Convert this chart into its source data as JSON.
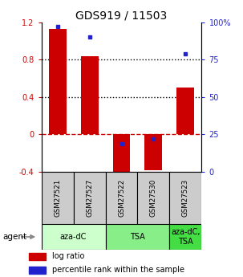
{
  "title": "GDS919 / 11503",
  "categories": [
    "GSM27521",
    "GSM27527",
    "GSM27522",
    "GSM27530",
    "GSM27523"
  ],
  "log_ratios": [
    1.13,
    0.84,
    -0.43,
    -0.38,
    0.5
  ],
  "percentile_ranks": [
    97,
    90,
    19,
    22,
    79
  ],
  "bar_color": "#cc0000",
  "dot_color": "#2222cc",
  "ylim_left": [
    -0.4,
    1.2
  ],
  "ylim_right": [
    0,
    100
  ],
  "yticks_left": [
    -0.4,
    0,
    0.4,
    0.8,
    1.2
  ],
  "yticks_right": [
    0,
    25,
    50,
    75,
    100
  ],
  "ytick_labels_left": [
    "-0.4",
    "0",
    "0.4",
    "0.8",
    "1.2"
  ],
  "ytick_labels_right": [
    "0",
    "25",
    "50",
    "75",
    "100%"
  ],
  "hlines_dotted": [
    0.4,
    0.8
  ],
  "hline_zero_color": "#cc0000",
  "agent_groups": [
    {
      "label": "aza-dC",
      "span": [
        0,
        2
      ],
      "color": "#ccffcc"
    },
    {
      "label": "TSA",
      "span": [
        2,
        4
      ],
      "color": "#88ee88"
    },
    {
      "label": "aza-dC,\nTSA",
      "span": [
        4,
        5
      ],
      "color": "#44dd44"
    }
  ],
  "agent_label": "agent",
  "legend_log_ratio": "log ratio",
  "legend_percentile": "percentile rank within the sample",
  "bar_width": 0.55,
  "sample_box_color": "#cccccc",
  "title_fontsize": 10,
  "tick_fontsize": 7,
  "label_fontsize": 7,
  "agent_fontsize": 7
}
